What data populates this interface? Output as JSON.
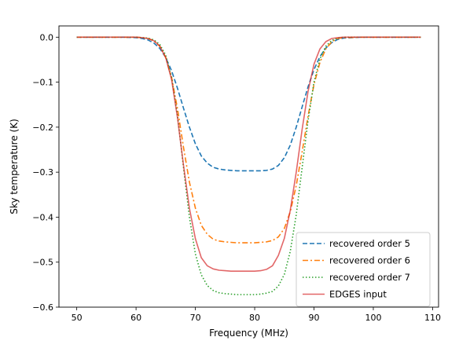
{
  "chart_data": {
    "type": "line",
    "xlabel": "Frequency (MHz)",
    "ylabel": "Sky temperature (K)",
    "xlim": [
      47,
      111
    ],
    "ylim": [
      -0.6,
      0.025
    ],
    "xticks": [
      50,
      60,
      70,
      80,
      90,
      100,
      110
    ],
    "xtick_labels": [
      "50",
      "60",
      "70",
      "80",
      "90",
      "100",
      "110"
    ],
    "yticks": [
      0.0,
      -0.1,
      -0.2,
      -0.3,
      -0.4,
      -0.5,
      -0.6
    ],
    "ytick_labels": [
      "0.0",
      "−0.1",
      "−0.2",
      "−0.3",
      "−0.4",
      "−0.5",
      "−0.6"
    ],
    "grid": false,
    "legend_position": "lower-right",
    "series": [
      {
        "name": "recovered order 5",
        "color": "#1f77b4",
        "dash": "dashed",
        "x": [
          50,
          55,
          58,
          60,
          61,
          62,
          63,
          64,
          65,
          66,
          67,
          68,
          69,
          70,
          71,
          72,
          73,
          74,
          75,
          76,
          77,
          78,
          79,
          80,
          81,
          82,
          83,
          84,
          85,
          86,
          87,
          88,
          89,
          90,
          91,
          92,
          93,
          94,
          95,
          98,
          100,
          103,
          108
        ],
        "values": [
          0.0,
          0.0,
          0.0,
          -0.001,
          -0.003,
          -0.006,
          -0.013,
          -0.025,
          -0.045,
          -0.075,
          -0.114,
          -0.158,
          -0.2,
          -0.237,
          -0.264,
          -0.28,
          -0.289,
          -0.293,
          -0.295,
          -0.296,
          -0.297,
          -0.297,
          -0.297,
          -0.297,
          -0.297,
          -0.296,
          -0.293,
          -0.285,
          -0.268,
          -0.24,
          -0.2,
          -0.155,
          -0.11,
          -0.072,
          -0.043,
          -0.024,
          -0.012,
          -0.005,
          -0.002,
          0.0,
          0.0,
          0.0,
          0.0
        ]
      },
      {
        "name": "recovered order 6",
        "color": "#ff7f0e",
        "dash": "dashdot",
        "x": [
          50,
          55,
          58,
          60,
          61,
          62,
          63,
          64,
          65,
          66,
          67,
          68,
          69,
          70,
          71,
          72,
          73,
          74,
          75,
          76,
          77,
          78,
          79,
          80,
          81,
          82,
          83,
          84,
          85,
          86,
          87,
          88,
          89,
          90,
          91,
          92,
          93,
          94,
          95,
          98,
          100,
          103,
          108
        ],
        "values": [
          0.0,
          0.0,
          0.0,
          0.0,
          -0.001,
          -0.003,
          -0.008,
          -0.02,
          -0.045,
          -0.09,
          -0.16,
          -0.245,
          -0.322,
          -0.38,
          -0.418,
          -0.438,
          -0.449,
          -0.453,
          -0.455,
          -0.456,
          -0.457,
          -0.457,
          -0.457,
          -0.457,
          -0.456,
          -0.455,
          -0.452,
          -0.444,
          -0.425,
          -0.388,
          -0.33,
          -0.255,
          -0.175,
          -0.105,
          -0.056,
          -0.026,
          -0.01,
          -0.003,
          -0.001,
          0.0,
          0.0,
          0.0,
          0.0
        ]
      },
      {
        "name": "recovered order 7",
        "color": "#2ca02c",
        "dash": "dotted",
        "x": [
          50,
          55,
          58,
          60,
          61,
          62,
          63,
          64,
          65,
          66,
          67,
          68,
          69,
          70,
          71,
          72,
          73,
          74,
          75,
          76,
          77,
          78,
          79,
          80,
          81,
          82,
          83,
          84,
          85,
          86,
          87,
          88,
          89,
          90,
          91,
          92,
          93,
          94,
          95,
          98,
          100,
          103,
          108
        ],
        "values": [
          0.0,
          0.0,
          0.0,
          0.0,
          -0.001,
          -0.002,
          -0.006,
          -0.016,
          -0.04,
          -0.09,
          -0.175,
          -0.29,
          -0.4,
          -0.482,
          -0.528,
          -0.552,
          -0.563,
          -0.568,
          -0.57,
          -0.571,
          -0.572,
          -0.572,
          -0.572,
          -0.572,
          -0.571,
          -0.569,
          -0.565,
          -0.553,
          -0.527,
          -0.476,
          -0.395,
          -0.29,
          -0.185,
          -0.1,
          -0.048,
          -0.02,
          -0.007,
          -0.002,
          0.0,
          0.0,
          0.0,
          0.0,
          0.0
        ]
      },
      {
        "name": "EDGES input",
        "color": "#d62728",
        "dash": "solid",
        "opacity": 0.7,
        "x": [
          50,
          55,
          58,
          60,
          61,
          62,
          63,
          64,
          65,
          66,
          67,
          68,
          69,
          70,
          71,
          72,
          73,
          74,
          75,
          76,
          77,
          78,
          79,
          80,
          81,
          82,
          83,
          84,
          85,
          86,
          87,
          88,
          89,
          90,
          91,
          92,
          93,
          94,
          95,
          98,
          100,
          103,
          108
        ],
        "values": [
          0.0,
          0.0,
          0.0,
          0.0,
          -0.001,
          -0.003,
          -0.008,
          -0.02,
          -0.045,
          -0.095,
          -0.18,
          -0.285,
          -0.38,
          -0.448,
          -0.49,
          -0.508,
          -0.515,
          -0.518,
          -0.519,
          -0.52,
          -0.52,
          -0.52,
          -0.52,
          -0.52,
          -0.519,
          -0.516,
          -0.508,
          -0.485,
          -0.447,
          -0.385,
          -0.3,
          -0.205,
          -0.12,
          -0.06,
          -0.026,
          -0.01,
          -0.003,
          -0.001,
          0.0,
          0.0,
          0.0,
          0.0,
          0.0
        ]
      }
    ]
  }
}
